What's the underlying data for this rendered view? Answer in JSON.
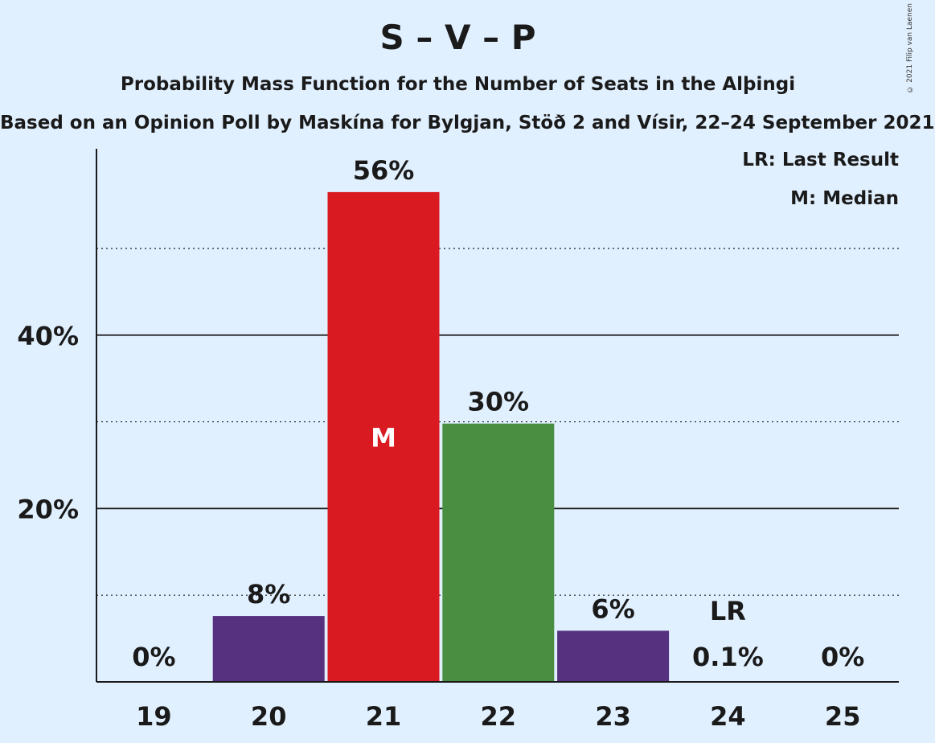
{
  "title": "S – V – P",
  "subtitle": "Probability Mass Function for the Number of Seats in the Alþingi",
  "source": "Based on an Opinion Poll by Maskína for Bylgjan, Stöð 2 and Vísir, 22–24 September 2021",
  "copyright": "© 2021 Filip van Laenen",
  "legend": {
    "last_result": "LR: Last Result",
    "median": "M: Median"
  },
  "colors": {
    "background": "#e1f0ff",
    "purple": "#56317f",
    "red": "#d91a21",
    "green": "#4a8f41",
    "text": "#1a1a1a"
  },
  "chart_data": {
    "type": "bar",
    "categories": [
      "19",
      "20",
      "21",
      "22",
      "23",
      "24",
      "25"
    ],
    "values": [
      0,
      7.6,
      56.5,
      29.8,
      5.9,
      0.1,
      0
    ],
    "bar_labels": [
      "0%",
      "8%",
      "56%",
      "30%",
      "6%",
      "0.1%",
      "0%"
    ],
    "bar_colors": [
      "#56317f",
      "#56317f",
      "#d91a21",
      "#4a8f41",
      "#56317f",
      "#56317f",
      "#56317f"
    ],
    "median_category": "21",
    "median_marker": "M",
    "last_result_category": "24",
    "last_result_marker": "LR",
    "ylim": [
      0,
      61.5
    ],
    "y_ticks": [
      {
        "value": 20,
        "label": "20%"
      },
      {
        "value": 40,
        "label": "40%"
      }
    ],
    "y_minor_gridlines": [
      10,
      30,
      50
    ],
    "grid": true,
    "legend_position": "top-right",
    "xlabel": "",
    "ylabel": ""
  }
}
